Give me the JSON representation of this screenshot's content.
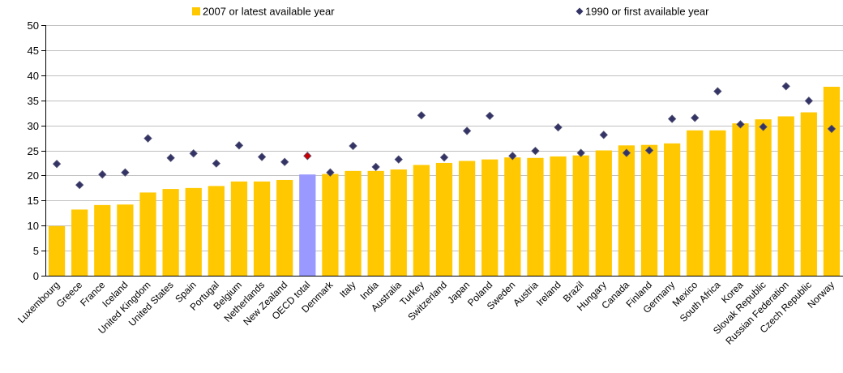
{
  "chart_data": {
    "type": "bar",
    "categories": [
      "Luxembourg",
      "Greece",
      "France",
      "Iceland",
      "United Kingdom",
      "United States",
      "Spain",
      "Portugal",
      "Belgium",
      "Netherlands",
      "New Zealand",
      "OECD total",
      "Denmark",
      "Italy",
      "India",
      "Australia",
      "Turkey",
      "Switzerland",
      "Japan",
      "Poland",
      "Sweden",
      "Austria",
      "Ireland",
      "Brazil",
      "Hungary",
      "Canada",
      "Finland",
      "Germany",
      "Mexico",
      "South Africa",
      "Korea",
      "Slovak Republic",
      "Russian Federation",
      "Czech Republic",
      "Norway"
    ],
    "series": [
      {
        "name": "2007 or latest available year",
        "kind": "bar",
        "color": "#FFC800",
        "highlight_color": "#9999FF",
        "highlight_category": "OECD total",
        "values": [
          9.9,
          13.2,
          14.1,
          14.2,
          16.6,
          17.3,
          17.5,
          17.9,
          18.8,
          18.8,
          19.1,
          20.2,
          20.3,
          20.9,
          20.9,
          21.2,
          22.1,
          22.5,
          22.9,
          23.2,
          23.6,
          23.5,
          23.8,
          24.0,
          25.0,
          26.0,
          26.1,
          26.4,
          29.0,
          29.0,
          30.4,
          31.2,
          31.8,
          32.6,
          37.7
        ]
      },
      {
        "name": "1990 or first available year",
        "kind": "marker",
        "marker": "diamond",
        "color": "#333366",
        "highlight_color": "#CC0000",
        "values": [
          22.3,
          18.1,
          20.2,
          20.6,
          27.4,
          23.5,
          24.4,
          22.4,
          26.0,
          23.7,
          22.7,
          23.9,
          20.6,
          25.9,
          21.7,
          23.2,
          32.0,
          23.6,
          28.9,
          31.9,
          23.9,
          24.9,
          29.6,
          24.5,
          28.1,
          24.5,
          25.0,
          31.3,
          31.5,
          36.8,
          30.2,
          29.7,
          37.8,
          34.9,
          29.3
        ]
      }
    ],
    "ylim": [
      0,
      50
    ],
    "yticks": [
      0,
      5,
      10,
      15,
      20,
      25,
      30,
      35,
      40,
      45,
      50
    ],
    "grid": true,
    "legend_position": "top"
  }
}
